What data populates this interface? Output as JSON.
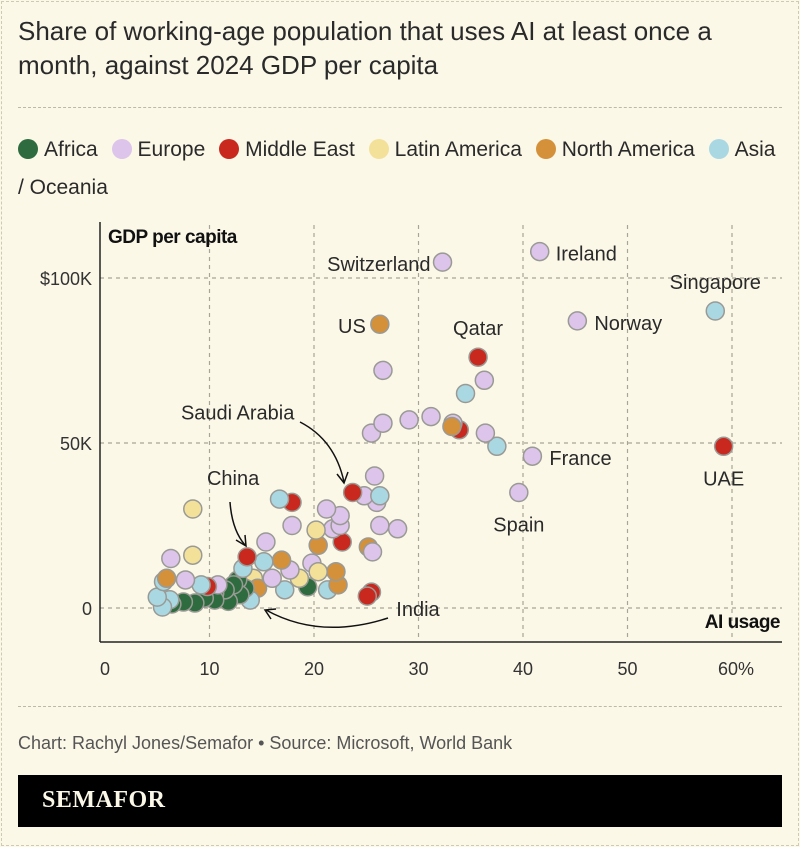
{
  "title": "Share of working-age population that uses AI at least once a month, against 2024 GDP per capita",
  "legend": [
    {
      "label": "Africa",
      "color": "#2e6b3e"
    },
    {
      "label": "Europe",
      "color": "#dcc4ea"
    },
    {
      "label": "Middle East",
      "color": "#c8281e"
    },
    {
      "label": "Latin America",
      "color": "#f3e19a"
    },
    {
      "label": "North America",
      "color": "#d4913a"
    },
    {
      "label": "Asia / Oceania",
      "color": "#a9d8e3"
    }
  ],
  "credit": "Chart: Rachyl Jones/Semafor • Source: Microsoft, World Bank",
  "brand": "SEMAFOR",
  "chart_data": {
    "type": "scatter",
    "xlabel": "AI usage",
    "ylabel": "GDP per capita",
    "xlim": [
      0,
      65
    ],
    "ylim": [
      -4,
      120
    ],
    "x_ticks": [
      "0",
      "10",
      "20",
      "30",
      "40",
      "50",
      "60%"
    ],
    "x_tick_values": [
      0,
      10,
      20,
      30,
      40,
      50,
      60
    ],
    "y_ticks": [
      "0",
      "50K",
      "$100K"
    ],
    "y_tick_values": [
      0,
      50,
      100
    ],
    "grid": true,
    "legend_position": "top",
    "points": [
      {
        "x": 32.3,
        "y": 104.8,
        "region": "Europe",
        "label": "Switzerland"
      },
      {
        "x": 41.6,
        "y": 108,
        "region": "Europe",
        "label": "Ireland"
      },
      {
        "x": 58.4,
        "y": 90,
        "region": "Asia / Oceania",
        "label": "Singapore"
      },
      {
        "x": 45.2,
        "y": 87,
        "region": "Europe",
        "label": "Norway"
      },
      {
        "x": 26.3,
        "y": 86,
        "region": "North America",
        "label": "US"
      },
      {
        "x": 35.7,
        "y": 76,
        "region": "Middle East",
        "label": "Qatar"
      },
      {
        "x": 59.2,
        "y": 49,
        "region": "Middle East",
        "label": "UAE"
      },
      {
        "x": 40.9,
        "y": 46,
        "region": "Europe",
        "label": "France"
      },
      {
        "x": 39.6,
        "y": 35,
        "region": "Europe",
        "label": "Spain"
      },
      {
        "x": 23.7,
        "y": 35,
        "region": "Middle East",
        "label": "Saudi Arabia"
      },
      {
        "x": 13.6,
        "y": 15.5,
        "region": "Middle East",
        "label": "China"
      },
      {
        "x": 25.1,
        "y": 3.6,
        "region": "Middle East",
        "label": "India"
      },
      {
        "x": 26.6,
        "y": 72,
        "region": "Europe"
      },
      {
        "x": 26.6,
        "y": 56,
        "region": "Europe"
      },
      {
        "x": 25.5,
        "y": 53,
        "region": "Europe"
      },
      {
        "x": 29.1,
        "y": 57,
        "region": "Europe"
      },
      {
        "x": 31.2,
        "y": 58,
        "region": "Europe"
      },
      {
        "x": 33.2,
        "y": 55,
        "region": "North America"
      },
      {
        "x": 33.3,
        "y": 56,
        "region": "Europe"
      },
      {
        "x": 33.9,
        "y": 54,
        "region": "Middle East"
      },
      {
        "x": 34.5,
        "y": 65,
        "region": "Asia / Oceania"
      },
      {
        "x": 36.3,
        "y": 69,
        "region": "Europe"
      },
      {
        "x": 36.4,
        "y": 53,
        "region": "Europe"
      },
      {
        "x": 37.5,
        "y": 49,
        "region": "Asia / Oceania"
      },
      {
        "x": 25.8,
        "y": 40,
        "region": "Europe"
      },
      {
        "x": 26.3,
        "y": 34,
        "region": "Asia / Oceania"
      },
      {
        "x": 24.8,
        "y": 34,
        "region": "Europe"
      },
      {
        "x": 26.0,
        "y": 32,
        "region": "Europe"
      },
      {
        "x": 26.3,
        "y": 25,
        "region": "Europe"
      },
      {
        "x": 28.0,
        "y": 24,
        "region": "Europe"
      },
      {
        "x": 25.6,
        "y": 17,
        "region": "Europe"
      },
      {
        "x": 21.2,
        "y": 30,
        "region": "Europe"
      },
      {
        "x": 22.5,
        "y": 28,
        "region": "Europe"
      },
      {
        "x": 22.5,
        "y": 25,
        "region": "Europe"
      },
      {
        "x": 20.2,
        "y": 23.6,
        "region": "Latin America"
      },
      {
        "x": 21.8,
        "y": 24,
        "region": "Europe"
      },
      {
        "x": 20.4,
        "y": 19,
        "region": "North America"
      },
      {
        "x": 22.7,
        "y": 20,
        "region": "Middle East"
      },
      {
        "x": 25.2,
        "y": 18.5,
        "region": "North America"
      },
      {
        "x": 20.4,
        "y": 11,
        "region": "Latin America"
      },
      {
        "x": 19.8,
        "y": 13.6,
        "region": "Europe"
      },
      {
        "x": 22.1,
        "y": 11,
        "region": "North America"
      },
      {
        "x": 22.3,
        "y": 7,
        "region": "North America"
      },
      {
        "x": 21.3,
        "y": 5.5,
        "region": "Asia / Oceania"
      },
      {
        "x": 25.5,
        "y": 4.8,
        "region": "Middle East"
      },
      {
        "x": 16.7,
        "y": 33,
        "region": "Asia / Oceania"
      },
      {
        "x": 17.9,
        "y": 32,
        "region": "Middle East"
      },
      {
        "x": 17.9,
        "y": 25,
        "region": "Europe"
      },
      {
        "x": 15.4,
        "y": 20,
        "region": "Europe"
      },
      {
        "x": 13.2,
        "y": 12,
        "region": "Asia / Oceania"
      },
      {
        "x": 15.2,
        "y": 14,
        "region": "Asia / Oceania"
      },
      {
        "x": 16.9,
        "y": 14.5,
        "region": "North America"
      },
      {
        "x": 16.0,
        "y": 9,
        "region": "Europe"
      },
      {
        "x": 17.7,
        "y": 11.5,
        "region": "Europe"
      },
      {
        "x": 18.6,
        "y": 9,
        "region": "Latin America"
      },
      {
        "x": 17.2,
        "y": 5.5,
        "region": "Asia / Oceania"
      },
      {
        "x": 19.4,
        "y": 6.4,
        "region": "Africa"
      },
      {
        "x": 8.4,
        "y": 30,
        "region": "Latin America"
      },
      {
        "x": 8.4,
        "y": 16,
        "region": "Latin America"
      },
      {
        "x": 6.3,
        "y": 15,
        "region": "Europe"
      },
      {
        "x": 5.9,
        "y": 9,
        "region": "North America"
      },
      {
        "x": 7.7,
        "y": 8.5,
        "region": "Europe"
      },
      {
        "x": 5.6,
        "y": 8,
        "region": "Asia / Oceania"
      },
      {
        "x": 9.2,
        "y": 7,
        "region": "Asia / Oceania"
      },
      {
        "x": 9.8,
        "y": 6.5,
        "region": "Middle East"
      },
      {
        "x": 10.8,
        "y": 7,
        "region": "Europe"
      },
      {
        "x": 5.0,
        "y": 3.3,
        "region": "Asia / Oceania"
      },
      {
        "x": 5.5,
        "y": 0.3,
        "region": "Asia / Oceania"
      },
      {
        "x": 6.2,
        "y": 2.5,
        "region": "Asia / Oceania"
      },
      {
        "x": 6.4,
        "y": 1.2,
        "region": "Africa"
      },
      {
        "x": 7.5,
        "y": 1.8,
        "region": "Africa"
      },
      {
        "x": 8.6,
        "y": 1.5,
        "region": "Africa"
      },
      {
        "x": 9.5,
        "y": 3,
        "region": "Africa"
      },
      {
        "x": 10.5,
        "y": 2.4,
        "region": "Africa"
      },
      {
        "x": 10.5,
        "y": 4.5,
        "region": "Africa"
      },
      {
        "x": 11.5,
        "y": 5.5,
        "region": "Africa"
      },
      {
        "x": 11.8,
        "y": 2,
        "region": "Africa"
      },
      {
        "x": 12.3,
        "y": 7,
        "region": "Africa"
      },
      {
        "x": 12.9,
        "y": 4,
        "region": "Africa"
      },
      {
        "x": 12.7,
        "y": 8.5,
        "region": "Africa"
      },
      {
        "x": 13.4,
        "y": 6,
        "region": "Africa"
      },
      {
        "x": 13.9,
        "y": 2.4,
        "region": "Asia / Oceania"
      },
      {
        "x": 14.6,
        "y": 6,
        "region": "North America"
      },
      {
        "x": 14.2,
        "y": 9,
        "region": "Latin America"
      }
    ]
  }
}
